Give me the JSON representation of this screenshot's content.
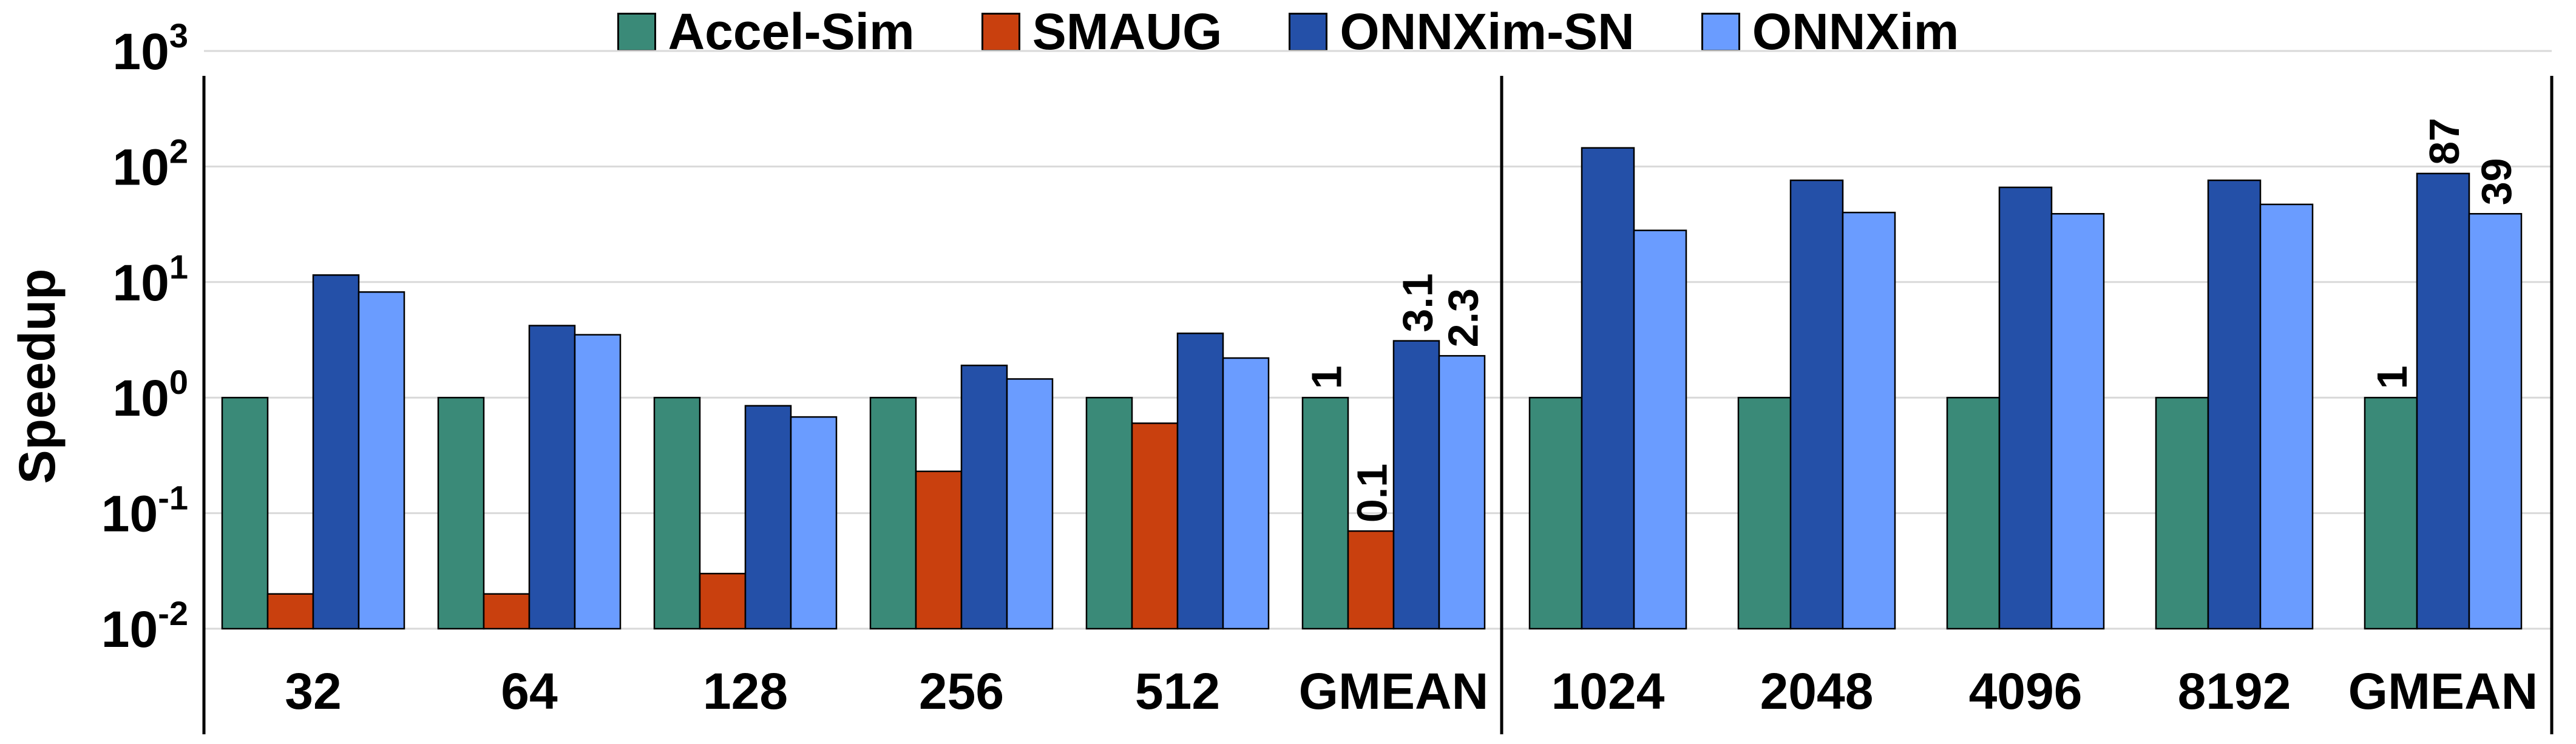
{
  "chart_data": {
    "type": "bar",
    "ylabel": "Speedup",
    "yscale": "log",
    "ylim": [
      0.01,
      1000
    ],
    "yticks": [
      {
        "base": "10",
        "exp": "-2"
      },
      {
        "base": "10",
        "exp": "-1"
      },
      {
        "base": "10",
        "exp": "0"
      },
      {
        "base": "10",
        "exp": "1"
      },
      {
        "base": "10",
        "exp": "2"
      },
      {
        "base": "10",
        "exp": "3"
      }
    ],
    "grid": true,
    "legend_position": "top",
    "series": [
      {
        "name": "Accel-Sim",
        "color": "#3a8a78"
      },
      {
        "name": "SMAUG",
        "color": "#c9400e"
      },
      {
        "name": "ONNXim-SN",
        "color": "#2450a8"
      },
      {
        "name": "ONNXim",
        "color": "#6a9cff"
      }
    ],
    "panels": [
      {
        "categories": [
          "32",
          "64",
          "128",
          "256",
          "512",
          "GMEAN"
        ],
        "values": {
          "Accel-Sim": [
            1,
            1,
            1,
            1,
            1,
            1
          ],
          "SMAUG": [
            0.02,
            0.02,
            0.03,
            0.23,
            0.6,
            0.07
          ],
          "ONNXim-SN": [
            11.5,
            4.2,
            0.85,
            1.9,
            3.6,
            3.1
          ],
          "ONNXim": [
            8.2,
            3.5,
            0.68,
            1.45,
            2.2,
            2.3
          ]
        },
        "annotations": [
          {
            "category": "GMEAN",
            "series": "Accel-Sim",
            "text": "1"
          },
          {
            "category": "GMEAN",
            "series": "SMAUG",
            "text": "0.1"
          },
          {
            "category": "GMEAN",
            "series": "ONNXim-SN",
            "text": "3.1"
          },
          {
            "category": "GMEAN",
            "series": "ONNXim",
            "text": "2.3"
          }
        ]
      },
      {
        "categories": [
          "1024",
          "2048",
          "4096",
          "8192",
          "GMEAN"
        ],
        "values": {
          "Accel-Sim": [
            1,
            1,
            1,
            1,
            1
          ],
          "SMAUG": [
            null,
            null,
            null,
            null,
            null
          ],
          "ONNXim-SN": [
            145,
            76,
            66,
            76,
            87
          ],
          "ONNXim": [
            28,
            40,
            39,
            47,
            39
          ]
        },
        "annotations": [
          {
            "category": "GMEAN",
            "series": "Accel-Sim",
            "text": "1"
          },
          {
            "category": "GMEAN",
            "series": "ONNXim-SN",
            "text": "87"
          },
          {
            "category": "GMEAN",
            "series": "ONNXim",
            "text": "39"
          }
        ]
      }
    ]
  }
}
